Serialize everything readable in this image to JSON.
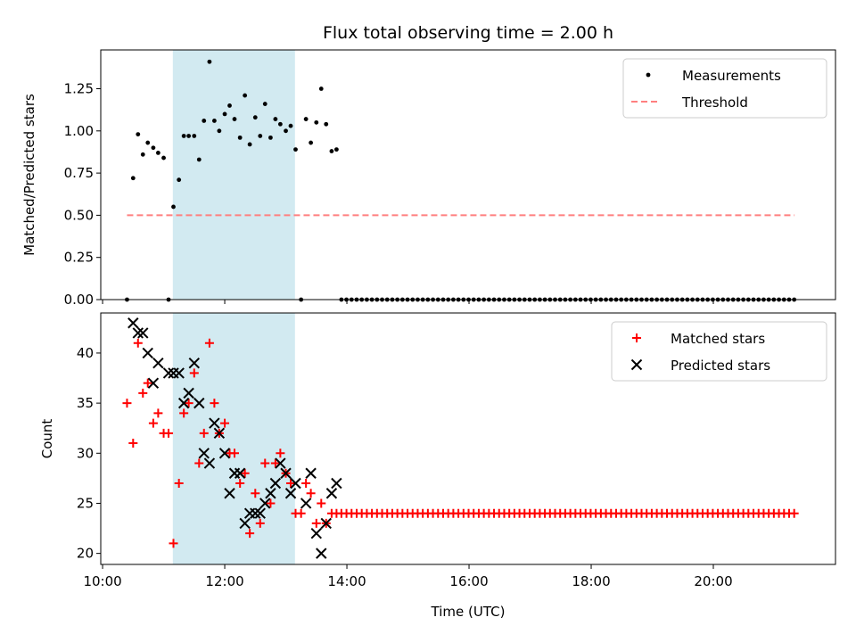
{
  "chart_data": {
    "title": "Flux total observing time = 2.00 h",
    "xlabel": "Time (UTC)",
    "x_unit": "hours",
    "xlim": [
      9.97,
      22.0
    ],
    "x_ticks": [
      {
        "value": 10,
        "label": "10:00"
      },
      {
        "value": 12,
        "label": "12:00"
      },
      {
        "value": 14,
        "label": "14:00"
      },
      {
        "value": 16,
        "label": "16:00"
      },
      {
        "value": 18,
        "label": "18:00"
      },
      {
        "value": 20,
        "label": "20:00"
      }
    ],
    "shaded_span": {
      "x0": 11.15,
      "x1": 13.15,
      "color": "#add8e6"
    },
    "panels": [
      {
        "type": "scatter",
        "ylabel": "Matched/Predicted stars",
        "ylim": [
          0,
          1.48
        ],
        "y_ticks": [
          0.0,
          0.25,
          0.5,
          0.75,
          1.0,
          1.25
        ],
        "y_tick_labels": [
          "0.00",
          "0.25",
          "0.50",
          "0.75",
          "1.00",
          "1.25"
        ],
        "legend_position": "top-right",
        "series": [
          {
            "name": "Measurements",
            "marker": "dot",
            "color": "#000000",
            "x": [
              10.4,
              10.5,
              10.58,
              10.66,
              10.74,
              10.83,
              10.91,
              11.0,
              11.08,
              11.16,
              11.25,
              11.33,
              11.41,
              11.5,
              11.58,
              11.66,
              11.75,
              11.83,
              11.91,
              12.0,
              12.08,
              12.16,
              12.25,
              12.33,
              12.41,
              12.5,
              12.58,
              12.66,
              12.75,
              12.83,
              12.91,
              13.0,
              13.08,
              13.16,
              13.25,
              13.33,
              13.41,
              13.5,
              13.58,
              13.66,
              13.75,
              13.83
            ],
            "y": [
              0.0,
              0.72,
              0.98,
              0.86,
              0.93,
              0.9,
              0.87,
              0.84,
              0.0,
              0.55,
              0.71,
              0.97,
              0.97,
              0.97,
              0.83,
              1.06,
              1.41,
              1.06,
              1.0,
              1.1,
              1.15,
              1.07,
              0.96,
              1.21,
              0.92,
              1.08,
              0.97,
              1.16,
              0.96,
              1.07,
              1.04,
              1.0,
              1.03,
              0.89,
              0.0,
              1.07,
              0.93,
              1.05,
              1.25,
              1.04,
              0.88,
              0.89
            ],
            "tail": {
              "x_start": 13.91,
              "x_end": 21.33,
              "step": 0.0833,
              "y": 0.0
            }
          },
          {
            "name": "Threshold",
            "type": "line",
            "style": "dashed",
            "color": "#ff7f7f",
            "x": [
              10.4,
              21.33
            ],
            "y": [
              0.5,
              0.5
            ]
          }
        ]
      },
      {
        "type": "scatter",
        "ylabel": "Count",
        "ylim": [
          18.9,
          44.0
        ],
        "y_ticks": [
          20,
          25,
          30,
          35,
          40
        ],
        "y_tick_labels": [
          "20",
          "25",
          "30",
          "35",
          "40"
        ],
        "legend_position": "top-right",
        "series": [
          {
            "name": "Matched stars",
            "marker": "plus",
            "color": "#ff0000",
            "x": [
              10.4,
              10.5,
              10.58,
              10.66,
              10.74,
              10.83,
              10.91,
              11.0,
              11.08,
              11.16,
              11.25,
              11.33,
              11.41,
              11.5,
              11.58,
              11.66,
              11.75,
              11.83,
              11.91,
              12.0,
              12.08,
              12.16,
              12.25,
              12.33,
              12.41,
              12.5,
              12.58,
              12.66,
              12.75,
              12.83,
              12.91,
              13.0,
              13.08,
              13.16,
              13.25,
              13.33,
              13.41,
              13.5,
              13.58,
              13.66,
              13.75,
              13.83
            ],
            "y": [
              35,
              31,
              41,
              36,
              37,
              33,
              34,
              32,
              32,
              21,
              27,
              34,
              35,
              38,
              29,
              32,
              41,
              35,
              32,
              33,
              30,
              30,
              27,
              28,
              22,
              26,
              23,
              29,
              25,
              29,
              30,
              28,
              27,
              24,
              24,
              27,
              26,
              23,
              25,
              23,
              24,
              24
            ],
            "tail": {
              "x_start": 13.91,
              "x_end": 21.33,
              "step": 0.0833,
              "y": 24
            }
          },
          {
            "name": "Predicted stars",
            "marker": "x",
            "color": "#000000",
            "x": [
              10.5,
              10.58,
              10.66,
              10.74,
              10.83,
              10.91,
              11.08,
              11.16,
              11.25,
              11.33,
              11.41,
              11.5,
              11.58,
              11.66,
              11.75,
              11.83,
              11.91,
              12.0,
              12.08,
              12.16,
              12.25,
              12.33,
              12.41,
              12.5,
              12.58,
              12.66,
              12.75,
              12.83,
              12.91,
              13.0,
              13.08,
              13.16,
              13.33,
              13.41,
              13.5,
              13.58,
              13.66,
              13.75,
              13.83
            ],
            "y": [
              43,
              42,
              42,
              40,
              37,
              39,
              38,
              38,
              38,
              35,
              36,
              39,
              35,
              30,
              29,
              33,
              32,
              30,
              26,
              28,
              28,
              23,
              24,
              24,
              24,
              25,
              26,
              27,
              29,
              28,
              26,
              27,
              25,
              28,
              22,
              20,
              23,
              26,
              27
            ]
          }
        ]
      }
    ]
  }
}
